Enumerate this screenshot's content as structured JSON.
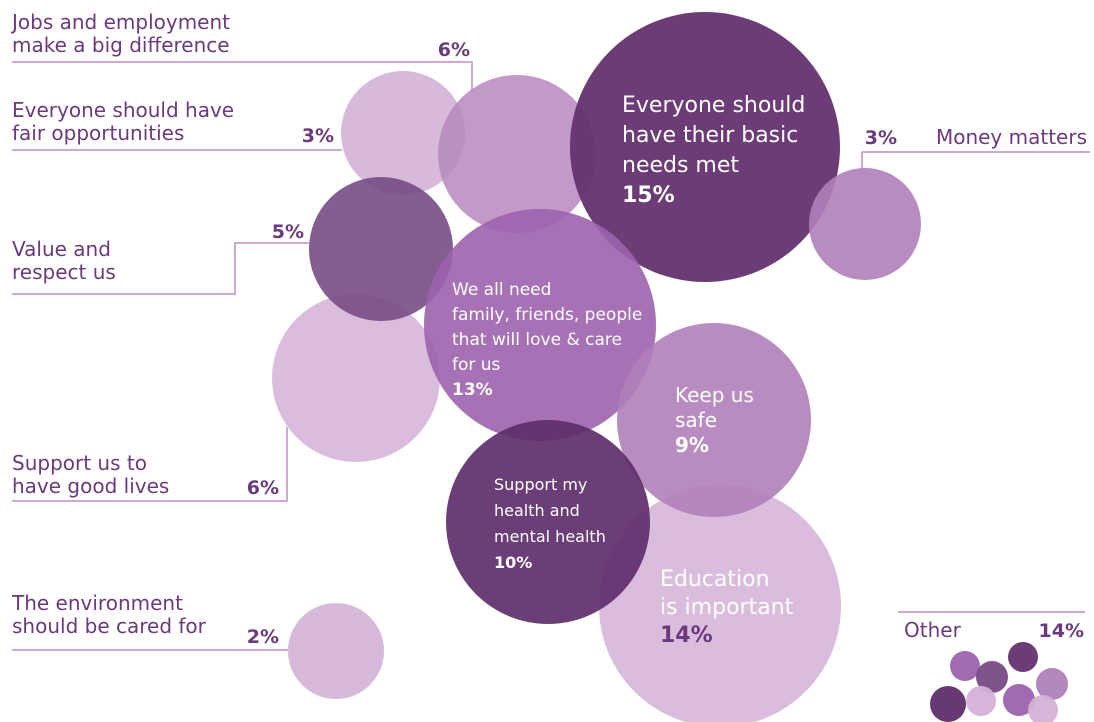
{
  "chart_data": {
    "type": "bubble",
    "title": "",
    "colors": {
      "label": "#6b3a7d",
      "leader": "#cfa8d4"
    },
    "categories": [
      {
        "key": "jobs",
        "label": "Jobs and employment make a big difference",
        "value": 6,
        "pct_label": "6%",
        "color": "#b787be"
      },
      {
        "key": "fair",
        "label": "Everyone should have fair opportunities",
        "value": 3,
        "pct_label": "3%",
        "color": "#d3b2d6"
      },
      {
        "key": "basic",
        "label": "Everyone should have their basic needs met",
        "value": 15,
        "pct_label": "15%",
        "color": "#64326f"
      },
      {
        "key": "money",
        "label": "Money matters",
        "value": 3,
        "pct_label": "3%",
        "color": "#b07fba"
      },
      {
        "key": "value",
        "label": "Value and respect us",
        "value": 5,
        "pct_label": "5%",
        "color": "#774b85"
      },
      {
        "key": "family",
        "label": "We all need family, friends, people that will love & care for us",
        "value": 13,
        "pct_label": "13%",
        "color": "#9d62ad"
      },
      {
        "key": "support",
        "label": "Support us to have good lives",
        "value": 6,
        "pct_label": "6%",
        "color": "#d3b2d6"
      },
      {
        "key": "safe",
        "label": "Keep us safe",
        "value": 9,
        "pct_label": "9%",
        "color": "#b07fba"
      },
      {
        "key": "health",
        "label": "Support my health and mental health",
        "value": 10,
        "pct_label": "10%",
        "color": "#5e2e6c"
      },
      {
        "key": "education",
        "label": "Education is important",
        "value": 14,
        "pct_label": "14%",
        "color": "#d3b2d6"
      },
      {
        "key": "environment",
        "label": "The environment should be cared for",
        "value": 2,
        "pct_label": "2%",
        "color": "#d3b2d6"
      },
      {
        "key": "other",
        "label": "Other",
        "value": 14,
        "pct_label": "14%",
        "color": "#9d62ad"
      }
    ],
    "other_cluster_colors": [
      "#9d62ad",
      "#774b85",
      "#64326f",
      "#b07fba",
      "#5e2e6c",
      "#d3b2d6",
      "#9d62ad",
      "#d3b2d6"
    ]
  }
}
